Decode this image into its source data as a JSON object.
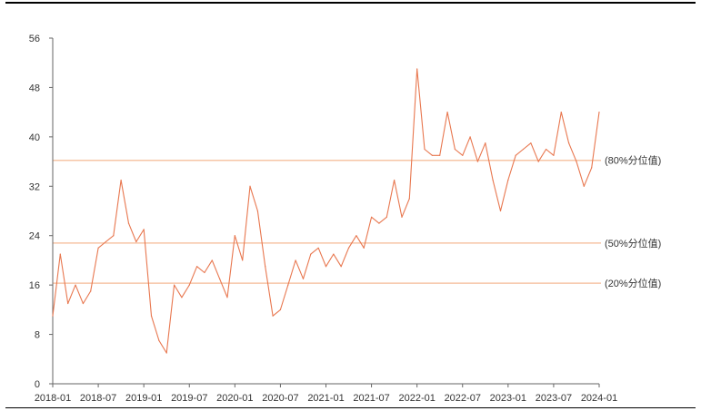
{
  "chart_data": {
    "type": "line",
    "title": "",
    "xlabel": "",
    "ylabel": "",
    "ylim": [
      0,
      56
    ],
    "yticks": [
      0,
      8,
      16,
      24,
      32,
      40,
      48,
      56
    ],
    "xticks": [
      "2018-01",
      "2018-07",
      "2019-01",
      "2019-07",
      "2020-01",
      "2020-07",
      "2021-01",
      "2021-07",
      "2022-01",
      "2022-07",
      "2023-01",
      "2023-07",
      "2024-01"
    ],
    "grid": false,
    "legend": "none",
    "colors": {
      "series": "#e8774f",
      "ref_line": "#f6c5a6"
    },
    "reference_lines": [
      {
        "label": "(80%分位值)",
        "value": 36.2
      },
      {
        "label": "(50%分位值)",
        "value": 22.8
      },
      {
        "label": "(20%分位值)",
        "value": 16.3
      }
    ],
    "series": [
      {
        "x": [
          "2018-01",
          "2018-02",
          "2018-03",
          "2018-04",
          "2018-05",
          "2018-06",
          "2018-07",
          "2018-08",
          "2018-09",
          "2018-10",
          "2018-11",
          "2018-12",
          "2019-01",
          "2019-02",
          "2019-03",
          "2019-04",
          "2019-05",
          "2019-06",
          "2019-07",
          "2019-08",
          "2019-09",
          "2019-10",
          "2019-11",
          "2019-12",
          "2020-01",
          "2020-02",
          "2020-03",
          "2020-04",
          "2020-05",
          "2020-06",
          "2020-07",
          "2020-08",
          "2020-09",
          "2020-10",
          "2020-11",
          "2020-12",
          "2021-01",
          "2021-02",
          "2021-03",
          "2021-04",
          "2021-05",
          "2021-06",
          "2021-07",
          "2021-08",
          "2021-09",
          "2021-10",
          "2021-11",
          "2021-12",
          "2022-01",
          "2022-02",
          "2022-03",
          "2022-04",
          "2022-05",
          "2022-06",
          "2022-07",
          "2022-08",
          "2022-09",
          "2022-10",
          "2022-11",
          "2022-12",
          "2023-01",
          "2023-02",
          "2023-03",
          "2023-04",
          "2023-05",
          "2023-06",
          "2023-07",
          "2023-08",
          "2023-09",
          "2023-10",
          "2023-11",
          "2023-12",
          "2024-01"
        ],
        "values": [
          11,
          21,
          13,
          16,
          13,
          15,
          22,
          23,
          24,
          33,
          26,
          23,
          25,
          11,
          7,
          5,
          16,
          14,
          16,
          19,
          18,
          20,
          17,
          14,
          24,
          20,
          32,
          28,
          19,
          11,
          12,
          16,
          20,
          17,
          21,
          22,
          19,
          21,
          19,
          22,
          24,
          22,
          27,
          26,
          27,
          33,
          27,
          30,
          51,
          38,
          37,
          37,
          44,
          38,
          37,
          40,
          36,
          39,
          33,
          28,
          33,
          37,
          38,
          39,
          36,
          38,
          37,
          44,
          39,
          36,
          32,
          35,
          44
        ],
        "extra_points": [
          [
            "2024-01",
            44
          ]
        ]
      }
    ]
  }
}
